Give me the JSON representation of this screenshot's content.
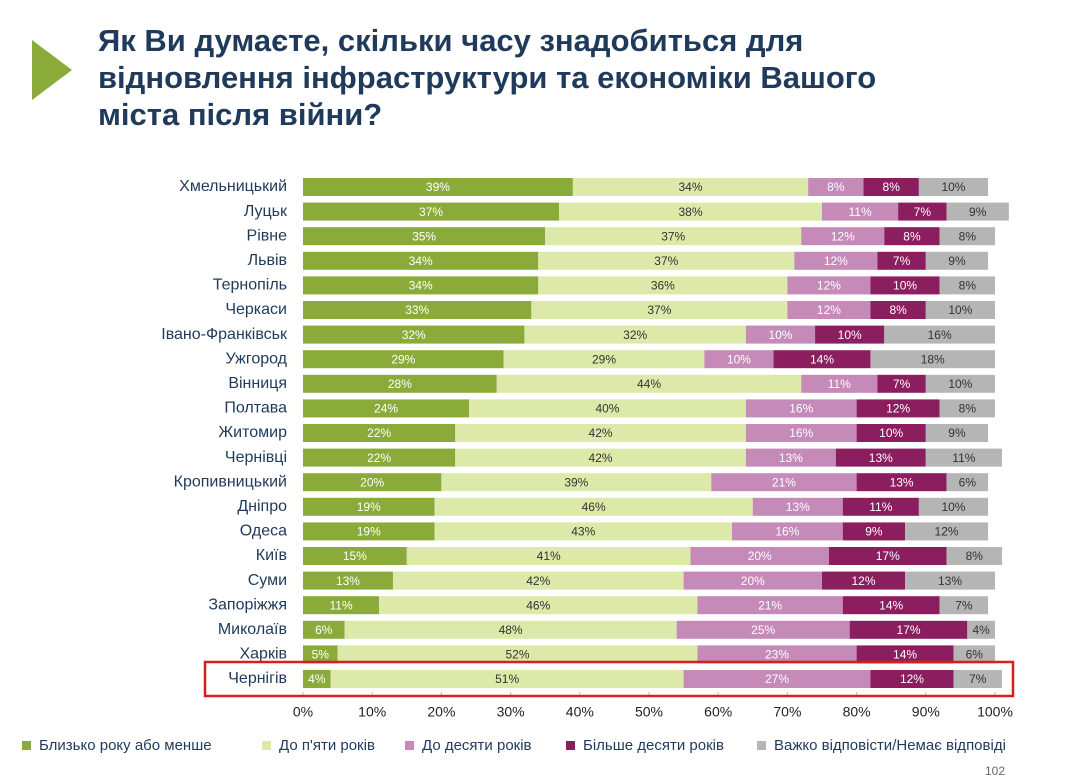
{
  "chart_data": {
    "type": "bar",
    "orientation": "horizontal",
    "stacked": true,
    "title": "Як Ви думаєте, скільки часу знадобиться для відновлення інфраструктури та економіки Вашого міста після війни?",
    "categories": [
      "Хмельницький",
      "Луцьк",
      "Рівне",
      "Львів",
      "Тернопіль",
      "Черкаси",
      "Івано-Франківськ",
      "Ужгород",
      "Вінниця",
      "Полтава",
      "Житомир",
      "Чернівці",
      "Кропивницький",
      "Дніпро",
      "Одеса",
      "Київ",
      "Суми",
      "Запоріжжя",
      "Миколаїв",
      "Харків",
      "Чернігів"
    ],
    "series": [
      {
        "name": "Близько року або менше",
        "color": "#8aab3a",
        "values": [
          39,
          37,
          35,
          34,
          34,
          33,
          32,
          29,
          28,
          24,
          22,
          22,
          20,
          19,
          19,
          15,
          13,
          11,
          6,
          5,
          4
        ],
        "value_labels": [
          "39%",
          "37%",
          "35%",
          "34%",
          "34%",
          "33%",
          "32%",
          "29%",
          "28%",
          "24%",
          "22%",
          "22%",
          "20%",
          "19%",
          "19%",
          "15%",
          "13%",
          "11%",
          "6%",
          "5%",
          "4%"
        ]
      },
      {
        "name": "До п'яти років",
        "color": "#dde9a8",
        "values": [
          34,
          38,
          37,
          37,
          36,
          37,
          32,
          29,
          44,
          40,
          42,
          42,
          39,
          46,
          43,
          41,
          42,
          46,
          48,
          52,
          51
        ],
        "value_labels": [
          "34%",
          "38%",
          "37%",
          "37%",
          "36%",
          "37%",
          "32%",
          "29%",
          "44%",
          "40%",
          "42%",
          "42%",
          "39%",
          "46%",
          "43%",
          "41%",
          "42%",
          "46%",
          "48%",
          "52%",
          "51%"
        ]
      },
      {
        "name": "До десяти років",
        "color": "#c58ab8",
        "values": [
          8,
          11,
          12,
          12,
          12,
          12,
          10,
          10,
          11,
          16,
          16,
          13,
          21,
          13,
          16,
          20,
          20,
          21,
          25,
          23,
          27
        ],
        "value_labels": [
          "8%",
          "11%",
          "12%",
          "12%",
          "12%",
          "12%",
          "10%",
          "10%",
          "11%",
          "16%",
          "16%",
          "13%",
          "21%",
          "13%",
          "16%",
          "20%",
          "20%",
          "21%",
          "25%",
          "23%",
          "27%"
        ]
      },
      {
        "name": "Більше десяти років",
        "color": "#8b1e5e",
        "values": [
          8,
          7,
          8,
          7,
          10,
          8,
          10,
          14,
          7,
          12,
          10,
          13,
          13,
          11,
          9,
          17,
          12,
          14,
          17,
          14,
          12
        ],
        "value_labels": [
          "8%",
          "7%",
          "8%",
          "7%",
          "10%",
          "8%",
          "10%",
          "14%",
          "7%",
          "12%",
          "10%",
          "13%",
          "13%",
          "11%",
          "9%",
          "17%",
          "12%",
          "14%",
          "17%",
          "14%",
          "12%"
        ]
      },
      {
        "name": "Важко відповісти/Немає відповіді",
        "color": "#b5b5b5",
        "values": [
          10,
          9,
          8,
          9,
          8,
          10,
          16,
          18,
          10,
          8,
          9,
          11,
          6,
          10,
          12,
          8,
          13,
          7,
          4,
          6,
          7
        ],
        "value_labels": [
          "10%",
          "9%",
          "8%",
          "9%",
          "8%",
          "10%",
          "16%",
          "18%",
          "10%",
          "8%",
          "9%",
          "11%",
          "6%",
          "10%",
          "12%",
          "8%",
          "13%",
          "7%",
          "4%",
          "6%",
          "7%"
        ]
      }
    ],
    "xlim": [
      0,
      100
    ],
    "xticks": [
      {
        "value": 0,
        "label": "0%"
      },
      {
        "value": 10,
        "label": "10%"
      },
      {
        "value": 20,
        "label": "20%"
      },
      {
        "value": 30,
        "label": "30%"
      },
      {
        "value": 40,
        "label": "40%"
      },
      {
        "value": 50,
        "label": "50%"
      },
      {
        "value": 60,
        "label": "60%"
      },
      {
        "value": 70,
        "label": "70%"
      },
      {
        "value": 80,
        "label": "80%"
      },
      {
        "value": 90,
        "label": "90%"
      },
      {
        "value": 100,
        "label": "100%"
      }
    ],
    "legend": "bottom",
    "page_number": "102"
  }
}
